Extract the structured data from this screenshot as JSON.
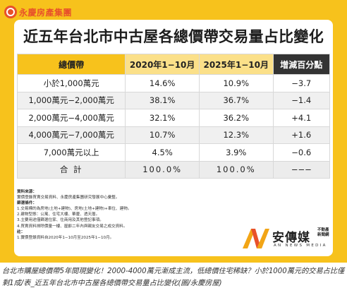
{
  "logo": {
    "text": "永慶房產集團",
    "icon": "circle-logo-icon"
  },
  "title": "近五年台北市中古屋各總價帶交易量占比變化",
  "table": {
    "headers": [
      "總價帶",
      "2020年1−10月",
      "2025年1−10月",
      "增減百分點"
    ],
    "rows": [
      [
        "小於1,000萬元",
        "14.6%",
        "10.9%",
        "−3.7"
      ],
      [
        "1,000萬元−2,000萬元",
        "38.1%",
        "36.7%",
        "−1.4"
      ],
      [
        "2,000萬元−4,000萬元",
        "32.1%",
        "36.2%",
        "+4.1"
      ],
      [
        "4,000萬元−7,000萬元",
        "10.7%",
        "12.3%",
        "+1.6"
      ],
      [
        "7,000萬元以上",
        "4.5%",
        "3.9%",
        "−0.6"
      ],
      [
        "合 計",
        "100.0%",
        "100.0%",
        "−−−"
      ]
    ]
  },
  "notes": {
    "source_heading": "資料來源：",
    "source_text": "實價登錄買賣交易資料、永慶房產集團研究發展中心彙整。",
    "filter_heading": "篩選條件：",
    "filter_items": [
      "1.交易標的為房地(土地+建物)、房地(土地+建物)+車位、建物。",
      "2.建物型態：公寓、住宅大樓、華廈、透天厝。",
      "3.主要用途僅篩選住家、住商用及其他登記事項。",
      "4.買賣資料排除價量一樓、屋齡二年內與親友交易之成交資料。"
    ],
    "note_heading": "註：",
    "note_text": "1.實價登錄資料自2020年1−10月至2025年1−10月。"
  },
  "brand": {
    "name": "安傳媒",
    "sub": "不動產新聞網",
    "en": "AN NEWS MEDIA"
  },
  "caption": "台北市購屋總價帶5年間現變化！2000-4000萬元漸成主流，低總價住宅稀缺？小於1000萬元的交易占比僅剩1成/表_近五年台北市中古屋各總價帶交易量占比變化(圖/永慶房屋)",
  "colors": {
    "yellow": "#f7c21c",
    "light_yellow": "#fbe089",
    "dark": "#333333",
    "logo_red": "#e8512a"
  }
}
